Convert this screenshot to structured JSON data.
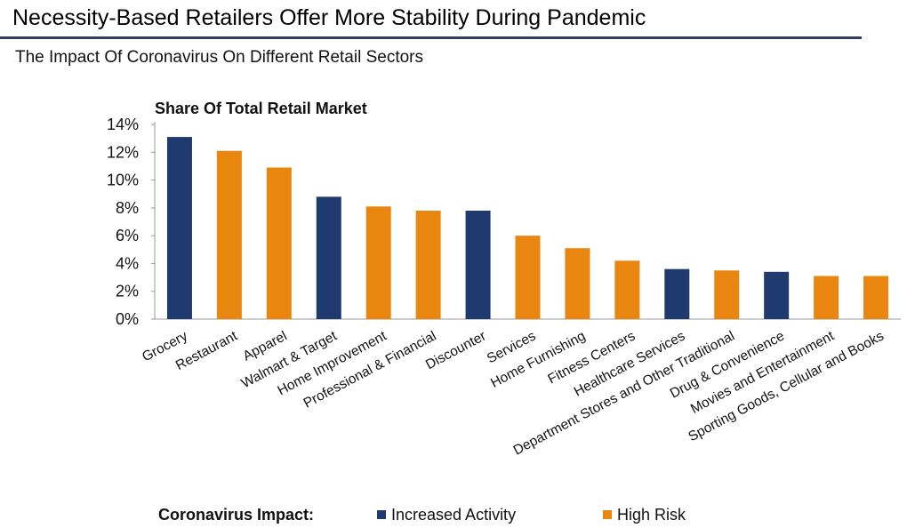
{
  "title": "Necessity-Based Retailers Offer More Stability During Pandemic",
  "subtitle": "The Impact Of Coronavirus On Different Retail Sectors",
  "colors": {
    "increased_activity": "#1f3a6e",
    "high_risk": "#e8860f",
    "title_rule": "#2d3f5f",
    "axis": "#999999"
  },
  "legend": {
    "title": "Coronavirus Impact:",
    "items": [
      {
        "label": "Increased Activity",
        "color": "#1f3a6e"
      },
      {
        "label": "High Risk",
        "color": "#e8860f"
      }
    ]
  },
  "chart_data": {
    "type": "bar",
    "title": "Share Of Total Retail Market",
    "xlabel": "",
    "ylabel": "",
    "ylim": [
      0,
      14
    ],
    "yticks": [
      0,
      2,
      4,
      6,
      8,
      10,
      12,
      14
    ],
    "ytick_labels": [
      "0%",
      "2%",
      "4%",
      "6%",
      "8%",
      "10%",
      "12%",
      "14%"
    ],
    "grid": false,
    "legend_position": "bottom",
    "categories": [
      "Grocery",
      "Restaurant",
      "Apparel",
      "Walmart & Target",
      "Home Improvement",
      "Professional & Financial",
      "Discounter",
      "Services",
      "Home Furnishing",
      "Fitness Centers",
      "Healthcare Services",
      "Department Stores and Other Traditional",
      "Drug & Convenience",
      "Movies and Entertainment",
      "Sporting Goods, Cellular and Books"
    ],
    "values": [
      13.1,
      12.1,
      10.9,
      8.8,
      8.1,
      7.8,
      7.8,
      6.0,
      5.1,
      4.2,
      3.6,
      3.5,
      3.4,
      3.1,
      3.1
    ],
    "impact": [
      "Increased Activity",
      "High Risk",
      "High Risk",
      "Increased Activity",
      "High Risk",
      "High Risk",
      "Increased Activity",
      "High Risk",
      "High Risk",
      "High Risk",
      "Increased Activity",
      "High Risk",
      "Increased Activity",
      "High Risk",
      "High Risk"
    ]
  }
}
